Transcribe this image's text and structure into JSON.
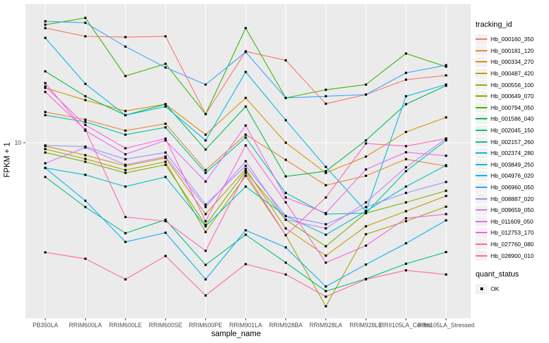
{
  "chart_data": {
    "type": "line",
    "title": "",
    "xlabel": "sample_name",
    "ylabel": "FPKM + 1",
    "y_scale": "log10",
    "y_tick_labels": [
      "10"
    ],
    "ylim": [
      1.05,
      60
    ],
    "grid": "major only, white on gray panel",
    "legend_position": "right",
    "panel_bg": "#EBEBEB",
    "grid_color": "#FFFFFF",
    "point_color": "#000000",
    "point_shape": "square",
    "axis_text_color": "#4D4D4D",
    "categories": [
      "PB350LA",
      "RRIM600LA",
      "RRIM600LE",
      "RRIM600SE",
      "RRIM600PE",
      "RRIM901LA",
      "RRIM928BA",
      "RRIM928LA",
      "RRIM928LE",
      "RRII105LA_Control",
      "RRII105LA_Stressed"
    ],
    "series": [
      {
        "name": "Hb_000160_350",
        "color": "#F8766D",
        "values": [
          44.4,
          39.9,
          39.5,
          39.9,
          14.5,
          32.8,
          29.2,
          16.6,
          18.7,
          22.7,
          24.0
        ]
      },
      {
        "name": "Hb_000181_120",
        "color": "#EA8331",
        "values": [
          14.9,
          13.5,
          11.7,
          12.8,
          7.0,
          11.1,
          8.0,
          5.75,
          6.5,
          8.07,
          7.38
        ]
      },
      {
        "name": "Hb_000334_270",
        "color": "#D89000",
        "values": [
          20.4,
          17.4,
          15.1,
          16.5,
          11.1,
          17.9,
          10.0,
          6.75,
          8.35,
          11.5,
          13.9
        ]
      },
      {
        "name": "Hb_000487_420",
        "color": "#C09B00",
        "values": [
          9.57,
          8.5,
          7.4,
          8.2,
          3.95,
          7.1,
          3.28,
          2.3,
          3.37,
          4.1,
          5.0
        ]
      },
      {
        "name": "Hb_000556_100",
        "color": "#A3A500",
        "values": [
          9.2,
          8.1,
          7.0,
          7.8,
          3.13,
          6.5,
          3.0,
          1.19,
          3.04,
          3.6,
          4.35
        ]
      },
      {
        "name": "Hb_000649_070",
        "color": "#7CAE00",
        "values": [
          8.8,
          7.8,
          6.75,
          7.5,
          3.43,
          6.9,
          3.67,
          2.6,
          4.0,
          4.6,
          5.35
        ]
      },
      {
        "name": "Hb_000794_050",
        "color": "#39B600",
        "values": [
          46.4,
          50.7,
          23.8,
          27.9,
          14.5,
          44.4,
          17.9,
          19.9,
          21.3,
          31.9,
          26.9
        ]
      },
      {
        "name": "Hb_001586_040",
        "color": "#00BB4E",
        "values": [
          25.3,
          18.3,
          14.3,
          16.5,
          9.15,
          16.0,
          6.45,
          6.9,
          10.3,
          16.5,
          21.0
        ]
      },
      {
        "name": "Hb_002045_150",
        "color": "#00BF7D",
        "values": [
          6.4,
          4.33,
          3.08,
          3.67,
          2.04,
          3.02,
          2.1,
          1.45,
          1.7,
          2.07,
          2.41
        ]
      },
      {
        "name": "Hb_002157_260",
        "color": "#00C1A3",
        "values": [
          14.3,
          13.1,
          11.1,
          12.2,
          6.75,
          10.7,
          5.2,
          3.95,
          4.0,
          6.9,
          10.3
        ]
      },
      {
        "name": "Hb_002374_280",
        "color": "#00BFC4",
        "values": [
          7.2,
          6.58,
          5.65,
          6.4,
          3.37,
          5.65,
          3.85,
          3.02,
          4.1,
          5.65,
          7.45
        ]
      },
      {
        "name": "Hb_003849_250",
        "color": "#00BAE0",
        "values": [
          39.1,
          21.5,
          14.3,
          16.0,
          10.3,
          25.1,
          13.4,
          7.3,
          4.1,
          18.3,
          21.3
        ]
      },
      {
        "name": "Hb_004976_020",
        "color": "#00B0F6",
        "values": [
          7.2,
          4.7,
          2.75,
          3.1,
          1.69,
          3.2,
          2.56,
          1.54,
          2.05,
          2.7,
          3.64
        ]
      },
      {
        "name": "Hb_006960_050",
        "color": "#35A2FF",
        "values": [
          48.5,
          47.6,
          34.9,
          26.6,
          21.3,
          32.5,
          17.9,
          18.3,
          18.7,
          24.8,
          27.4
        ]
      },
      {
        "name": "Hb_008887_020",
        "color": "#9590FF",
        "values": [
          9.65,
          9.5,
          8.07,
          8.8,
          4.47,
          7.4,
          3.85,
          3.46,
          4.33,
          5.2,
          6.0
        ]
      },
      {
        "name": "Hb_009659_050",
        "color": "#C77CFF",
        "values": [
          7.65,
          9.4,
          7.5,
          8.35,
          4.33,
          7.86,
          3.67,
          3.28,
          4.6,
          7.26,
          10.55
        ]
      },
      {
        "name": "Hb_011609_050",
        "color": "#E76BF3",
        "values": [
          21.7,
          11.7,
          8.6,
          10.3,
          6.03,
          12.5,
          4.9,
          4.0,
          7.06,
          8.83,
          8.44
        ]
      },
      {
        "name": "Hb_012753_170",
        "color": "#FA62DB",
        "values": [
          20.8,
          12.6,
          9.3,
          10.55,
          3.6,
          9.65,
          4.6,
          2.1,
          2.62,
          3.74,
          3.95
        ]
      },
      {
        "name": "Hb_027760_080",
        "color": "#FF62BC",
        "values": [
          19.35,
          11.85,
          3.8,
          3.6,
          2.45,
          6.75,
          3.0,
          4.9,
          9.9,
          9.56,
          10.55
        ]
      },
      {
        "name": "Hb_028900_010",
        "color": "#FF6A98",
        "values": [
          2.4,
          2.21,
          1.69,
          2.29,
          1.37,
          2.06,
          1.8,
          1.35,
          1.69,
          1.9,
          1.8
        ]
      }
    ],
    "quant_status_values": [
      "OK"
    ]
  },
  "legend": {
    "tracking_title": "tracking_id",
    "quant_title": "quant_status",
    "quant_ok_label": "OK",
    "key_bg": "#F2F2F2"
  }
}
